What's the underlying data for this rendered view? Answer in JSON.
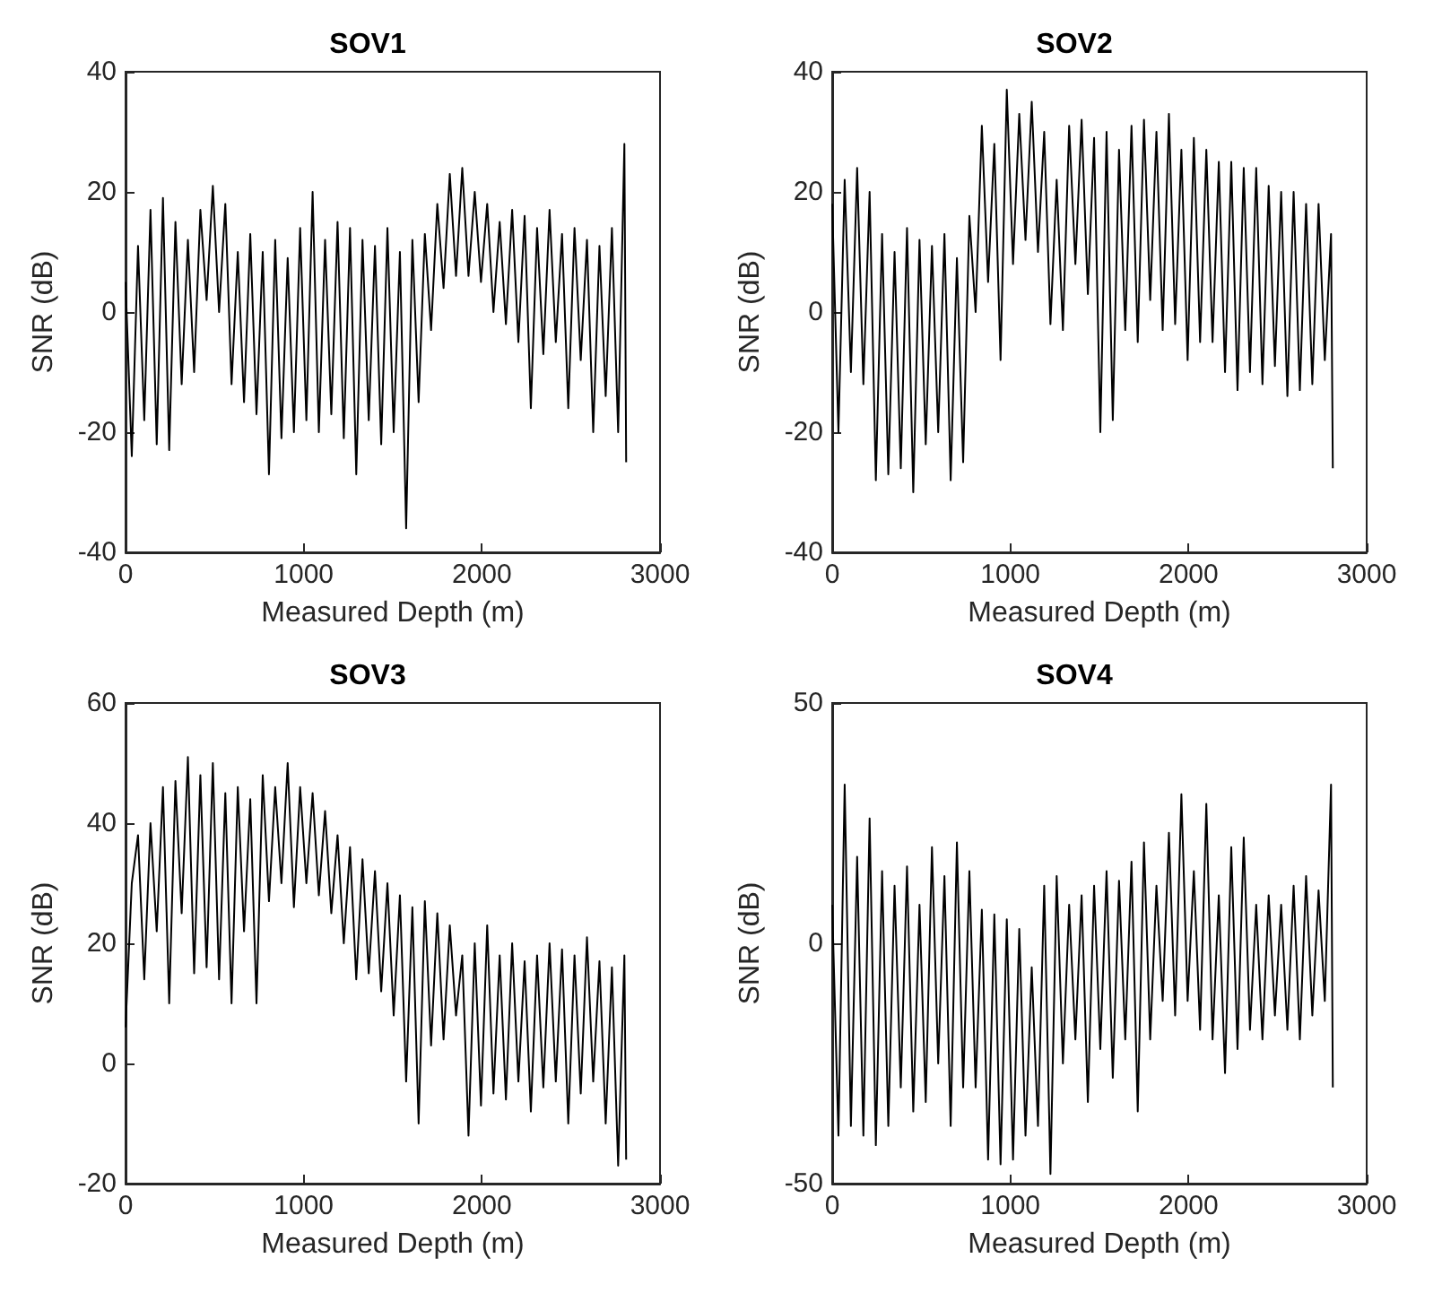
{
  "chart_data": [
    {
      "type": "line",
      "title": "SOV1",
      "xlabel": "Measured Depth (m)",
      "ylabel": "SNR (dB)",
      "color": "#000000",
      "grid": false,
      "x": [
        0,
        35,
        70,
        105,
        140,
        175,
        210,
        245,
        280,
        315,
        350,
        385,
        420,
        455,
        490,
        525,
        560,
        595,
        630,
        665,
        700,
        735,
        770,
        805,
        840,
        875,
        910,
        945,
        980,
        1015,
        1050,
        1085,
        1120,
        1155,
        1190,
        1225,
        1260,
        1295,
        1330,
        1365,
        1400,
        1435,
        1470,
        1505,
        1540,
        1575,
        1610,
        1645,
        1680,
        1715,
        1750,
        1785,
        1820,
        1855,
        1890,
        1925,
        1960,
        1995,
        2030,
        2065,
        2100,
        2135,
        2170,
        2205,
        2240,
        2275,
        2310,
        2345,
        2380,
        2415,
        2450,
        2485,
        2520,
        2555,
        2590,
        2625,
        2660,
        2695,
        2730,
        2765,
        2800,
        2810
      ],
      "values": [
        5,
        -24,
        11,
        -18,
        17,
        -22,
        19,
        -23,
        15,
        -12,
        12,
        -10,
        17,
        2,
        21,
        0,
        18,
        -12,
        10,
        -15,
        13,
        -17,
        10,
        -27,
        12,
        -21,
        9,
        -20,
        14,
        -18,
        20,
        -20,
        12,
        -17,
        15,
        -21,
        14,
        -27,
        12,
        -18,
        11,
        -22,
        14,
        -20,
        10,
        -36,
        12,
        -15,
        13,
        -3,
        18,
        4,
        23,
        6,
        24,
        6,
        20,
        5,
        18,
        0,
        15,
        -2,
        17,
        -5,
        16,
        -16,
        14,
        -7,
        17,
        -5,
        13,
        -16,
        14,
        -8,
        12,
        -20,
        11,
        -14,
        14,
        -20,
        28,
        -25
      ],
      "xlim": [
        0,
        3000
      ],
      "xticks": [
        0,
        1000,
        2000,
        3000
      ],
      "ylim": [
        -40,
        40
      ],
      "yticks": [
        -40,
        -20,
        0,
        20,
        40
      ]
    },
    {
      "type": "line",
      "title": "SOV2",
      "xlabel": "Measured Depth (m)",
      "ylabel": "SNR (dB)",
      "color": "#000000",
      "grid": false,
      "x": [
        0,
        35,
        70,
        105,
        140,
        175,
        210,
        245,
        280,
        315,
        350,
        385,
        420,
        455,
        490,
        525,
        560,
        595,
        630,
        665,
        700,
        735,
        770,
        805,
        840,
        875,
        910,
        945,
        980,
        1015,
        1050,
        1085,
        1120,
        1155,
        1190,
        1225,
        1260,
        1295,
        1330,
        1365,
        1400,
        1435,
        1470,
        1505,
        1540,
        1575,
        1610,
        1645,
        1680,
        1715,
        1750,
        1785,
        1820,
        1855,
        1890,
        1925,
        1960,
        1995,
        2030,
        2065,
        2100,
        2135,
        2170,
        2205,
        2240,
        2275,
        2310,
        2345,
        2380,
        2415,
        2450,
        2485,
        2520,
        2555,
        2590,
        2625,
        2660,
        2695,
        2730,
        2765,
        2800,
        2810
      ],
      "values": [
        18,
        -20,
        22,
        -10,
        24,
        -12,
        20,
        -28,
        13,
        -27,
        10,
        -26,
        14,
        -30,
        12,
        -22,
        11,
        -20,
        13,
        -28,
        9,
        -25,
        16,
        0,
        31,
        5,
        28,
        -8,
        37,
        8,
        33,
        12,
        35,
        10,
        30,
        -2,
        22,
        -3,
        31,
        8,
        32,
        3,
        29,
        -20,
        30,
        -18,
        27,
        -3,
        31,
        -5,
        32,
        2,
        30,
        -3,
        33,
        -2,
        27,
        -8,
        29,
        -5,
        27,
        -5,
        25,
        -10,
        25,
        -13,
        24,
        -10,
        24,
        -12,
        21,
        -9,
        20,
        -14,
        20,
        -13,
        18,
        -12,
        18,
        -8,
        13,
        -26
      ],
      "xlim": [
        0,
        3000
      ],
      "xticks": [
        0,
        1000,
        2000,
        3000
      ],
      "ylim": [
        -40,
        40
      ],
      "yticks": [
        -40,
        -20,
        0,
        20,
        40
      ]
    },
    {
      "type": "line",
      "title": "SOV3",
      "xlabel": "Measured Depth (m)",
      "ylabel": "SNR (dB)",
      "color": "#000000",
      "grid": false,
      "x": [
        0,
        35,
        70,
        105,
        140,
        175,
        210,
        245,
        280,
        315,
        350,
        385,
        420,
        455,
        490,
        525,
        560,
        595,
        630,
        665,
        700,
        735,
        770,
        805,
        840,
        875,
        910,
        945,
        980,
        1015,
        1050,
        1085,
        1120,
        1155,
        1190,
        1225,
        1260,
        1295,
        1330,
        1365,
        1400,
        1435,
        1470,
        1505,
        1540,
        1575,
        1610,
        1645,
        1680,
        1715,
        1750,
        1785,
        1820,
        1855,
        1890,
        1925,
        1960,
        1995,
        2030,
        2065,
        2100,
        2135,
        2170,
        2205,
        2240,
        2275,
        2310,
        2345,
        2380,
        2415,
        2450,
        2485,
        2520,
        2555,
        2590,
        2625,
        2660,
        2695,
        2730,
        2765,
        2800,
        2810
      ],
      "values": [
        6,
        30,
        38,
        14,
        40,
        22,
        46,
        10,
        47,
        25,
        51,
        15,
        48,
        16,
        50,
        14,
        45,
        10,
        46,
        22,
        44,
        10,
        48,
        27,
        46,
        30,
        50,
        26,
        46,
        30,
        45,
        28,
        42,
        25,
        38,
        20,
        36,
        14,
        34,
        15,
        32,
        12,
        30,
        8,
        28,
        -3,
        26,
        -10,
        27,
        3,
        25,
        4,
        23,
        8,
        18,
        -12,
        20,
        -7,
        23,
        -5,
        18,
        -6,
        20,
        -3,
        17,
        -8,
        18,
        -4,
        20,
        -3,
        19,
        -10,
        18,
        -5,
        21,
        -3,
        17,
        -10,
        16,
        -17,
        18,
        -16
      ],
      "xlim": [
        0,
        3000
      ],
      "xticks": [
        0,
        1000,
        2000,
        3000
      ],
      "ylim": [
        -20,
        60
      ],
      "yticks": [
        -20,
        0,
        20,
        40,
        60
      ]
    },
    {
      "type": "line",
      "title": "SOV4",
      "xlabel": "Measured Depth (m)",
      "ylabel": "SNR (dB)",
      "color": "#000000",
      "grid": false,
      "x": [
        0,
        35,
        70,
        105,
        140,
        175,
        210,
        245,
        280,
        315,
        350,
        385,
        420,
        455,
        490,
        525,
        560,
        595,
        630,
        665,
        700,
        735,
        770,
        805,
        840,
        875,
        910,
        945,
        980,
        1015,
        1050,
        1085,
        1120,
        1155,
        1190,
        1225,
        1260,
        1295,
        1330,
        1365,
        1400,
        1435,
        1470,
        1505,
        1540,
        1575,
        1610,
        1645,
        1680,
        1715,
        1750,
        1785,
        1820,
        1855,
        1890,
        1925,
        1960,
        1995,
        2030,
        2065,
        2100,
        2135,
        2170,
        2205,
        2240,
        2275,
        2310,
        2345,
        2380,
        2415,
        2450,
        2485,
        2520,
        2555,
        2590,
        2625,
        2660,
        2695,
        2730,
        2765,
        2800,
        2810
      ],
      "values": [
        8,
        -40,
        33,
        -38,
        18,
        -40,
        26,
        -42,
        15,
        -38,
        12,
        -30,
        16,
        -35,
        8,
        -33,
        20,
        -25,
        14,
        -38,
        21,
        -30,
        15,
        -30,
        7,
        -45,
        6,
        -46,
        5,
        -45,
        3,
        -40,
        -5,
        -38,
        12,
        -48,
        14,
        -25,
        8,
        -20,
        10,
        -33,
        12,
        -22,
        15,
        -28,
        13,
        -20,
        17,
        -35,
        21,
        -20,
        12,
        -12,
        23,
        -15,
        31,
        -12,
        15,
        -18,
        29,
        -20,
        10,
        -27,
        20,
        -22,
        22,
        -18,
        8,
        -20,
        10,
        -15,
        8,
        -18,
        12,
        -20,
        14,
        -15,
        11,
        -12,
        33,
        -30
      ],
      "xlim": [
        0,
        3000
      ],
      "xticks": [
        0,
        1000,
        2000,
        3000
      ],
      "ylim": [
        -50,
        50
      ],
      "yticks": [
        -50,
        0,
        50
      ]
    }
  ]
}
